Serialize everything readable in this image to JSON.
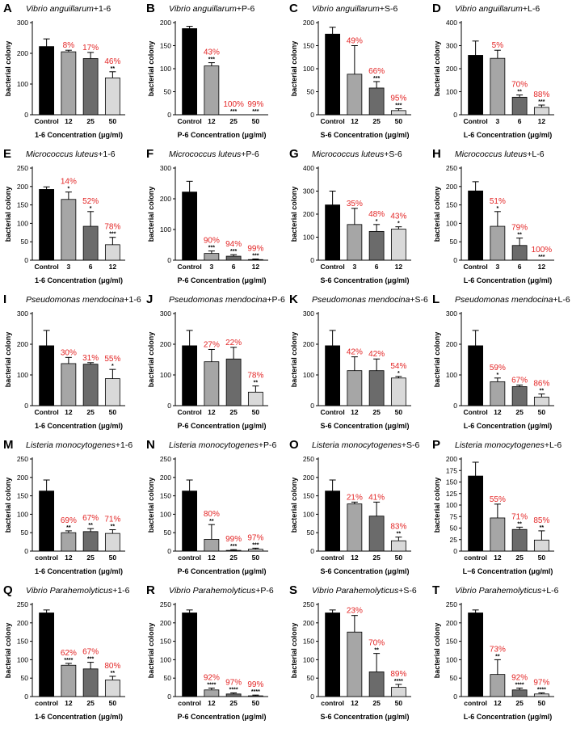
{
  "figure": {
    "ylabel": "bacterial colony",
    "colors": {
      "bar_colors": [
        "#000000",
        "#a6a6a6",
        "#6b6b6b",
        "#d9d9d9"
      ],
      "percent": "#e32626"
    }
  },
  "chart_data": [
    {
      "label": "A",
      "species": "Vibrio anguillarum",
      "treat": "+1-6",
      "type": "bar",
      "categories": [
        "Control",
        "12",
        "25",
        "50"
      ],
      "values": [
        222,
        205,
        183,
        120
      ],
      "errors": [
        25,
        5,
        20,
        20
      ],
      "percents": [
        "",
        "8%",
        "17%",
        "46%"
      ],
      "sig": [
        "",
        "",
        "",
        "**"
      ],
      "ylim": [
        0,
        300
      ],
      "yticks": [
        0,
        100,
        200,
        300
      ],
      "xlabel": "1-6 Concentration (μg/ml)"
    },
    {
      "label": "B",
      "species": "Vibrio anguillarum",
      "treat": "+P-6",
      "type": "bar",
      "categories": [
        "Control",
        "12",
        "25",
        "50"
      ],
      "values": [
        187,
        106,
        0,
        0
      ],
      "errors": [
        5,
        7,
        0,
        0
      ],
      "percents": [
        "",
        "43%",
        "100%",
        "99%"
      ],
      "sig": [
        "",
        "***",
        "***",
        "***"
      ],
      "ylim": [
        0,
        200
      ],
      "yticks": [
        0,
        50,
        100,
        150,
        200
      ],
      "xlabel": "P-6 Concentration (μg/ml)"
    },
    {
      "label": "C",
      "species": "Vibrio anguillarum",
      "treat": "+S-6",
      "type": "bar",
      "categories": [
        "Control",
        "12",
        "25",
        "50"
      ],
      "values": [
        175,
        88,
        58,
        9
      ],
      "errors": [
        15,
        62,
        14,
        4
      ],
      "percents": [
        "",
        "49%",
        "66%",
        "95%"
      ],
      "sig": [
        "",
        "",
        "***",
        "***"
      ],
      "ylim": [
        0,
        200
      ],
      "yticks": [
        0,
        50,
        100,
        150,
        200
      ],
      "xlabel": "S-6 Concentration (μg/ml)"
    },
    {
      "label": "D",
      "species": "Vibrio anguillarum",
      "treat": "+L-6",
      "type": "bar",
      "categories": [
        "Control",
        "3",
        "6",
        "12"
      ],
      "values": [
        258,
        245,
        76,
        32
      ],
      "errors": [
        62,
        35,
        10,
        10
      ],
      "percents": [
        "",
        "5%",
        "70%",
        "88%"
      ],
      "sig": [
        "",
        "",
        "**",
        "***"
      ],
      "ylim": [
        0,
        400
      ],
      "yticks": [
        0,
        100,
        200,
        300,
        400
      ],
      "xlabel": "L-6 Concentration (μg/ml)"
    },
    {
      "label": "E",
      "species": "Micrococcus luteus",
      "treat": "+1-6",
      "type": "bar",
      "categories": [
        "Control",
        "3",
        "6",
        "12"
      ],
      "values": [
        192,
        165,
        92,
        42
      ],
      "errors": [
        7,
        20,
        40,
        20
      ],
      "percents": [
        "",
        "14%",
        "52%",
        "78%"
      ],
      "sig": [
        "",
        "*",
        "*",
        "***"
      ],
      "ylim": [
        0,
        250
      ],
      "yticks": [
        0,
        50,
        100,
        150,
        200,
        250
      ],
      "xlabel": "1-6 Concentration (μg/ml)"
    },
    {
      "label": "F",
      "species": "Micrococcus luteus",
      "treat": "+P-6",
      "type": "bar",
      "categories": [
        "Control",
        "3",
        "6",
        "12"
      ],
      "values": [
        222,
        22,
        13,
        2
      ],
      "errors": [
        35,
        8,
        5,
        2
      ],
      "percents": [
        "",
        "90%",
        "94%",
        "99%"
      ],
      "sig": [
        "",
        "***",
        "***",
        "***"
      ],
      "ylim": [
        0,
        300
      ],
      "yticks": [
        0,
        100,
        200,
        300
      ],
      "xlabel": "P-6 Concentration (μg/ml)"
    },
    {
      "label": "G",
      "species": "Micrococcus luteus",
      "treat": "+S-6",
      "type": "bar",
      "categories": [
        "Control",
        "3",
        "6",
        "12"
      ],
      "values": [
        240,
        155,
        125,
        135
      ],
      "errors": [
        60,
        70,
        30,
        10
      ],
      "percents": [
        "",
        "35%",
        "48%",
        "43%"
      ],
      "sig": [
        "",
        "",
        "*",
        "*"
      ],
      "ylim": [
        0,
        400
      ],
      "yticks": [
        0,
        100,
        200,
        300,
        400
      ],
      "xlabel": "S-6 Concentration (μg/ml)"
    },
    {
      "label": "H",
      "species": "Micrococcus luteus",
      "treat": "+L-6",
      "type": "bar",
      "categories": [
        "Control",
        "3",
        "6",
        "12"
      ],
      "values": [
        188,
        92,
        40,
        0
      ],
      "errors": [
        25,
        40,
        20,
        0
      ],
      "percents": [
        "",
        "51%",
        "79%",
        "100%"
      ],
      "sig": [
        "",
        "*",
        "**",
        "***"
      ],
      "ylim": [
        0,
        250
      ],
      "yticks": [
        0,
        50,
        100,
        150,
        200,
        250
      ],
      "xlabel": "L-6 Concentration (μg/ml)"
    },
    {
      "label": "I",
      "species": "Pseudomonas mendocina",
      "treat": "+1-6",
      "type": "bar",
      "categories": [
        "Control",
        "12",
        "25",
        "50"
      ],
      "values": [
        195,
        137,
        135,
        88
      ],
      "errors": [
        50,
        20,
        5,
        30
      ],
      "percents": [
        "",
        "30%",
        "31%",
        "55%"
      ],
      "sig": [
        "",
        "",
        "",
        "*"
      ],
      "ylim": [
        0,
        300
      ],
      "yticks": [
        0,
        100,
        200,
        300
      ],
      "xlabel": "1-6 Concentration (μg/ml)"
    },
    {
      "label": "J",
      "species": "Pseudomonas mendocina",
      "treat": "+P-6",
      "type": "bar",
      "categories": [
        "Control",
        "12",
        "25",
        "50"
      ],
      "values": [
        195,
        143,
        152,
        44
      ],
      "errors": [
        50,
        40,
        38,
        20
      ],
      "percents": [
        "",
        "27%",
        "22%",
        "78%"
      ],
      "sig": [
        "",
        "",
        "",
        "**"
      ],
      "ylim": [
        0,
        300
      ],
      "yticks": [
        0,
        100,
        200,
        300
      ],
      "xlabel": "P-6 Concentration (μg/ml)"
    },
    {
      "label": "K",
      "species": "Pseudomonas mendocina",
      "treat": "+S-6",
      "type": "bar",
      "categories": [
        "Control",
        "12",
        "25",
        "50"
      ],
      "values": [
        195,
        114,
        114,
        90
      ],
      "errors": [
        50,
        45,
        38,
        5
      ],
      "percents": [
        "",
        "42%",
        "42%",
        "54%"
      ],
      "sig": [
        "",
        "",
        "",
        "*"
      ],
      "ylim": [
        0,
        300
      ],
      "yticks": [
        0,
        100,
        200,
        300
      ],
      "xlabel": "S-6 Concentration (μg/ml)"
    },
    {
      "label": "L",
      "species": "Pseudomonas mendocina",
      "treat": "+L-6",
      "type": "bar",
      "categories": [
        "Control",
        "12",
        "25",
        "50"
      ],
      "values": [
        195,
        78,
        62,
        28
      ],
      "errors": [
        50,
        12,
        5,
        10
      ],
      "percents": [
        "",
        "59%",
        "67%",
        "86%"
      ],
      "sig": [
        "",
        "*",
        "",
        "**"
      ],
      "ylim": [
        0,
        300
      ],
      "yticks": [
        0,
        100,
        200,
        300
      ],
      "xlabel": "L-6 Concentration (μg/ml)"
    },
    {
      "label": "M",
      "species": "Listeria monocytogenes",
      "treat": "+1-6",
      "type": "bar",
      "categories": [
        "control",
        "12",
        "25",
        "50"
      ],
      "values": [
        163,
        50,
        53,
        48
      ],
      "errors": [
        30,
        5,
        8,
        10
      ],
      "percents": [
        "",
        "69%",
        "67%",
        "71%"
      ],
      "sig": [
        "",
        "**",
        "**",
        "**"
      ],
      "ylim": [
        0,
        250
      ],
      "yticks": [
        0,
        50,
        100,
        150,
        200,
        250
      ],
      "xlabel": "1-6 Concentration (μg/ml)"
    },
    {
      "label": "N",
      "species": "Listeria monocytogenes",
      "treat": "+P-6",
      "type": "bar",
      "categories": [
        "control",
        "12",
        "25",
        "50"
      ],
      "values": [
        163,
        32,
        2,
        5
      ],
      "errors": [
        30,
        40,
        2,
        3
      ],
      "percents": [
        "",
        "80%",
        "99%",
        "97%"
      ],
      "sig": [
        "",
        "**",
        "***",
        "***"
      ],
      "ylim": [
        0,
        250
      ],
      "yticks": [
        0,
        50,
        100,
        150,
        200,
        250
      ],
      "xlabel": "P-6 Concentration (μg/ml)"
    },
    {
      "label": "O",
      "species": "Listeria monocytogenes",
      "treat": "+S-6",
      "type": "bar",
      "categories": [
        "control",
        "12",
        "25",
        "50"
      ],
      "values": [
        163,
        128,
        95,
        28
      ],
      "errors": [
        30,
        5,
        38,
        10
      ],
      "percents": [
        "",
        "21%",
        "41%",
        "83%"
      ],
      "sig": [
        "",
        "",
        "",
        "**"
      ],
      "ylim": [
        0,
        250
      ],
      "yticks": [
        0,
        50,
        100,
        150,
        200,
        250
      ],
      "xlabel": "S-6 Concentration (μg/ml)"
    },
    {
      "label": "P",
      "species": "Listeria monocytogenes",
      "treat": "+L-6",
      "type": "bar",
      "categories": [
        "control",
        "12",
        "25",
        "50"
      ],
      "values": [
        163,
        72,
        47,
        24
      ],
      "errors": [
        30,
        30,
        5,
        20
      ],
      "percents": [
        "",
        "55%",
        "71%",
        "85%"
      ],
      "sig": [
        "",
        "",
        "**",
        "**"
      ],
      "ylim": [
        0,
        200
      ],
      "yticks": [
        0,
        25,
        50,
        75,
        100,
        125,
        150,
        175,
        200
      ],
      "xlabel": "L−6 Concentration (μg/ml)"
    },
    {
      "label": "Q",
      "species": "Vibrio Parahemolyticus",
      "treat": "+1-6",
      "type": "bar",
      "categories": [
        "control",
        "12",
        "25",
        "50"
      ],
      "values": [
        227,
        85,
        75,
        45
      ],
      "errors": [
        8,
        5,
        18,
        10
      ],
      "percents": [
        "",
        "62%",
        "67%",
        "80%"
      ],
      "sig": [
        "",
        "****",
        "***",
        "**"
      ],
      "ylim": [
        0,
        250
      ],
      "yticks": [
        0,
        50,
        100,
        150,
        200,
        250
      ],
      "xlabel": "1-6 Concentration (μg/ml)"
    },
    {
      "label": "R",
      "species": "Vibrio Parahemolyticus",
      "treat": "+P-6",
      "type": "bar",
      "categories": [
        "control",
        "12",
        "25",
        "50"
      ],
      "values": [
        227,
        18,
        7,
        2
      ],
      "errors": [
        8,
        5,
        3,
        2
      ],
      "percents": [
        "",
        "92%",
        "97%",
        "99%"
      ],
      "sig": [
        "",
        "****",
        "****",
        "****"
      ],
      "ylim": [
        0,
        250
      ],
      "yticks": [
        0,
        50,
        100,
        150,
        200,
        250
      ],
      "xlabel": "P-6 Concentration (μg/ml)"
    },
    {
      "label": "S",
      "species": "Vibrio Parahemolyticus",
      "treat": "+S-6",
      "type": "bar",
      "categories": [
        "control",
        "12",
        "25",
        "50"
      ],
      "values": [
        227,
        175,
        67,
        25
      ],
      "errors": [
        8,
        45,
        50,
        8
      ],
      "percents": [
        "",
        "23%",
        "70%",
        "89%"
      ],
      "sig": [
        "",
        "",
        "**",
        "****"
      ],
      "ylim": [
        0,
        250
      ],
      "yticks": [
        0,
        50,
        100,
        150,
        200,
        250
      ],
      "xlabel": "S-6 Concentration (μg/ml)"
    },
    {
      "label": "T",
      "species": "Vibrio Parahemolyticus",
      "treat": "+L-6",
      "type": "bar",
      "categories": [
        "control",
        "12",
        "25",
        "50"
      ],
      "values": [
        227,
        60,
        18,
        7
      ],
      "errors": [
        8,
        40,
        5,
        3
      ],
      "percents": [
        "",
        "73%",
        "92%",
        "97%"
      ],
      "sig": [
        "",
        "**",
        "****",
        "****"
      ],
      "ylim": [
        0,
        250
      ],
      "yticks": [
        0,
        50,
        100,
        150,
        200,
        250
      ],
      "xlabel": "L-6 Concentration (μg/ml)"
    }
  ]
}
